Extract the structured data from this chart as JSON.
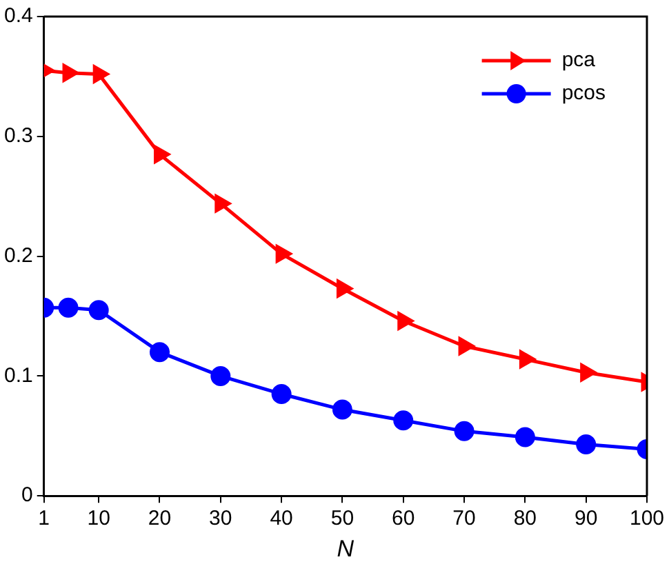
{
  "chart_data": {
    "type": "line",
    "xlabel": "N",
    "x": [
      1,
      5,
      10,
      20,
      30,
      40,
      50,
      60,
      70,
      80,
      90,
      100
    ],
    "series": [
      {
        "name": "pca",
        "color": "#ff0000",
        "marker": "triangle",
        "values": [
          0.355,
          0.353,
          0.352,
          0.285,
          0.244,
          0.202,
          0.173,
          0.146,
          0.125,
          0.114,
          0.103,
          0.095
        ]
      },
      {
        "name": "pcos",
        "color": "#0000ff",
        "marker": "circle",
        "values": [
          0.157,
          0.157,
          0.155,
          0.12,
          0.1,
          0.085,
          0.072,
          0.063,
          0.054,
          0.049,
          0.043,
          0.039
        ]
      }
    ],
    "xlim": [
      1,
      100
    ],
    "xticks": [
      1,
      10,
      20,
      30,
      40,
      50,
      60,
      70,
      80,
      90,
      100
    ],
    "ylim": [
      0,
      0.4
    ],
    "yticks": [
      0,
      0.1,
      0.2,
      0.3,
      0.4
    ],
    "grid": false,
    "legend": "top right",
    "line_style": "solid"
  }
}
